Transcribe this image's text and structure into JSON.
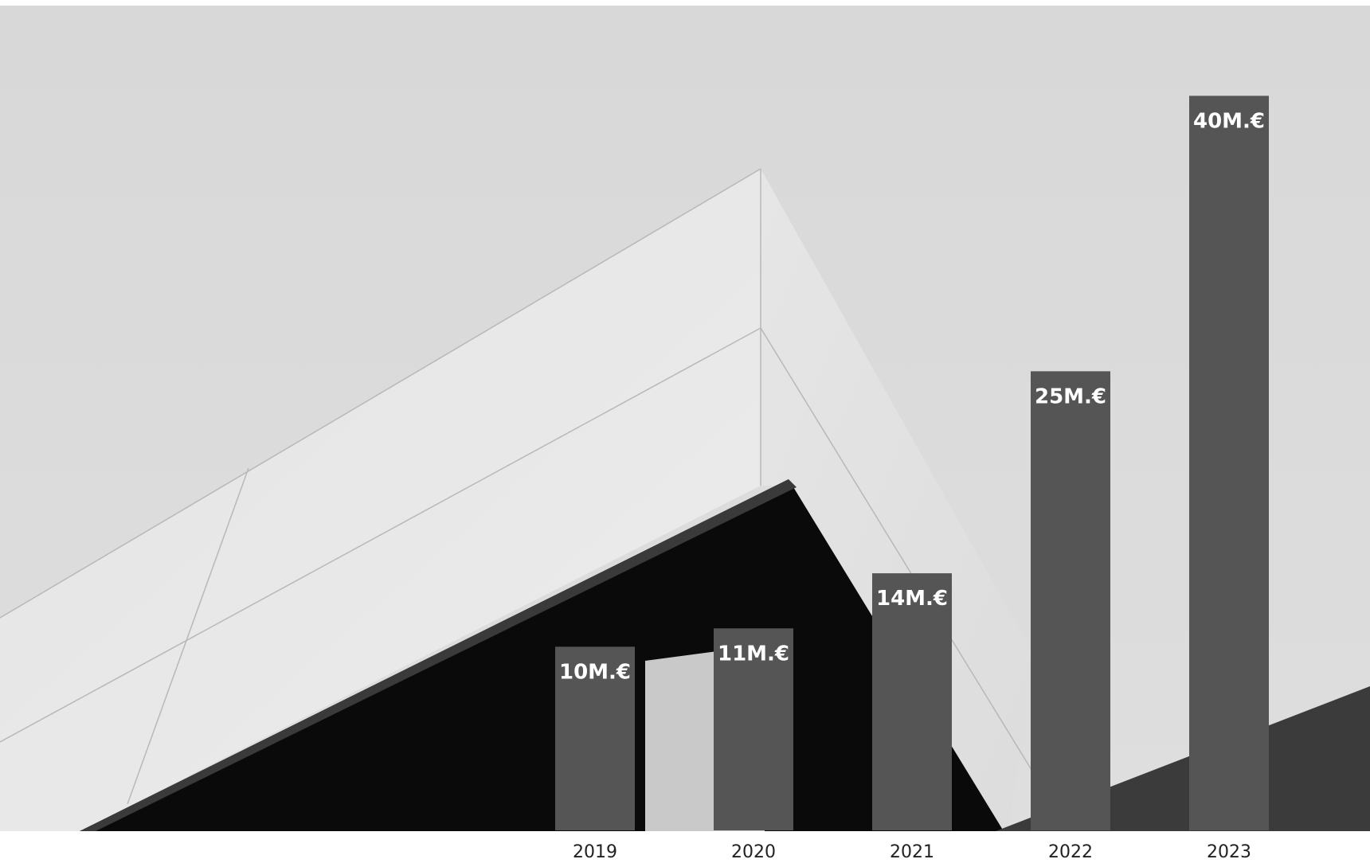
{
  "chart_data": {
    "type": "bar",
    "categories": [
      "2019",
      "2020",
      "2021",
      "2022",
      "2023"
    ],
    "values": [
      10,
      11,
      14,
      25,
      40
    ],
    "data_labels": [
      "10M.€",
      "11M.€",
      "14M.€",
      "25M.€",
      "40M.€"
    ],
    "title": "",
    "xlabel": "",
    "ylabel": "",
    "ylim": [
      0,
      42.4
    ],
    "grid": false,
    "legend": "none",
    "colors": {
      "bar": "#555555",
      "data_label": "#ffffff",
      "tick_label": "#222222",
      "sky": "#d9d9d9"
    }
  },
  "background": {
    "description_icon": "building-roof-photo"
  }
}
